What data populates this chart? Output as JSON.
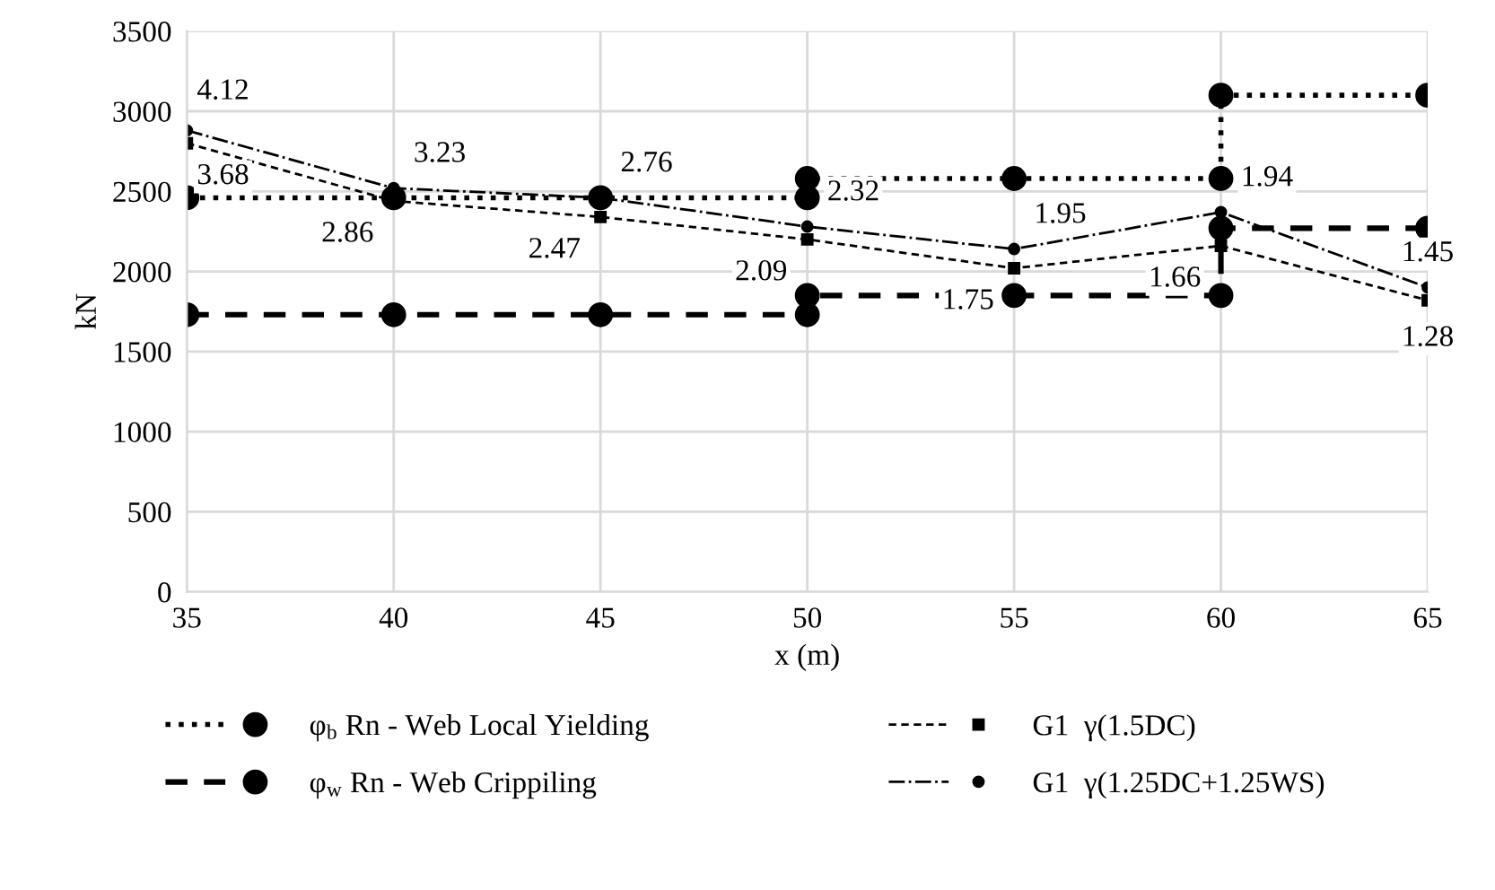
{
  "chart_data": {
    "type": "line",
    "xlabel": "x (m)",
    "ylabel": "kN",
    "xlim": [
      35,
      65
    ],
    "xticks": [
      35,
      40,
      45,
      50,
      55,
      60,
      65
    ],
    "ylim": [
      0,
      3500
    ],
    "yticks": [
      0,
      500,
      1000,
      1500,
      2000,
      2500,
      3000,
      3500
    ],
    "grid": true,
    "legend": "bottom",
    "series": [
      {
        "name": "φ$_{b}$ Rn - Web Local Yielding",
        "color": "#000000",
        "line_style": "dotted",
        "marker": "circle",
        "x": [
          35,
          40,
          45,
          50,
          50,
          55,
          60,
          60,
          65
        ],
        "values": [
          2460,
          2460,
          2460,
          2460,
          2580,
          2580,
          2580,
          3100,
          3100
        ]
      },
      {
        "name": "φ$_{w}$ Rn - Web Crippiling",
        "color": "#000000",
        "line_style": "dashed",
        "marker": "circle",
        "x": [
          35,
          40,
          45,
          50,
          50,
          55,
          60,
          60,
          65
        ],
        "values": [
          1730,
          1730,
          1730,
          1730,
          1850,
          1850,
          1850,
          2270,
          2270
        ]
      },
      {
        "name": "G1  γ(1.5DC)",
        "color": "#000000",
        "line_style": "dashed",
        "marker": "square",
        "x": [
          35,
          40,
          45,
          50,
          55,
          60,
          65
        ],
        "values": [
          2800,
          2440,
          2340,
          2200,
          2020,
          2160,
          1820
        ]
      },
      {
        "name": "G1  γ(1.25DC+1.25WS)",
        "color": "#000000",
        "line_style": "dashdot",
        "marker": "circle",
        "x": [
          35,
          40,
          45,
          50,
          55,
          60,
          65
        ],
        "values": [
          2880,
          2520,
          2460,
          2280,
          2140,
          2370,
          1900
        ]
      }
    ],
    "annotations": [
      {
        "text": "3.68",
        "x": 35,
        "y": 2800
      },
      {
        "text": "2.86",
        "x": 40,
        "y": 2440
      },
      {
        "text": "2.47",
        "x": 45,
        "y": 2340
      },
      {
        "text": "2.09",
        "x": 50,
        "y": 2200
      },
      {
        "text": "1.75",
        "x": 55,
        "y": 2020
      },
      {
        "text": "1.66",
        "x": 60,
        "y": 2160
      },
      {
        "text": "1.28",
        "x": 65,
        "y": 1820
      },
      {
        "text": "4.12",
        "x": 35,
        "y": 2880
      },
      {
        "text": "3.23",
        "x": 40,
        "y": 2520
      },
      {
        "text": "2.76",
        "x": 45,
        "y": 2460
      },
      {
        "text": "2.32",
        "x": 50,
        "y": 2280
      },
      {
        "text": "1.95",
        "x": 55,
        "y": 2140
      },
      {
        "text": "1.94",
        "x": 60,
        "y": 2370
      },
      {
        "text": "1.45",
        "x": 65,
        "y": 1900
      }
    ]
  }
}
